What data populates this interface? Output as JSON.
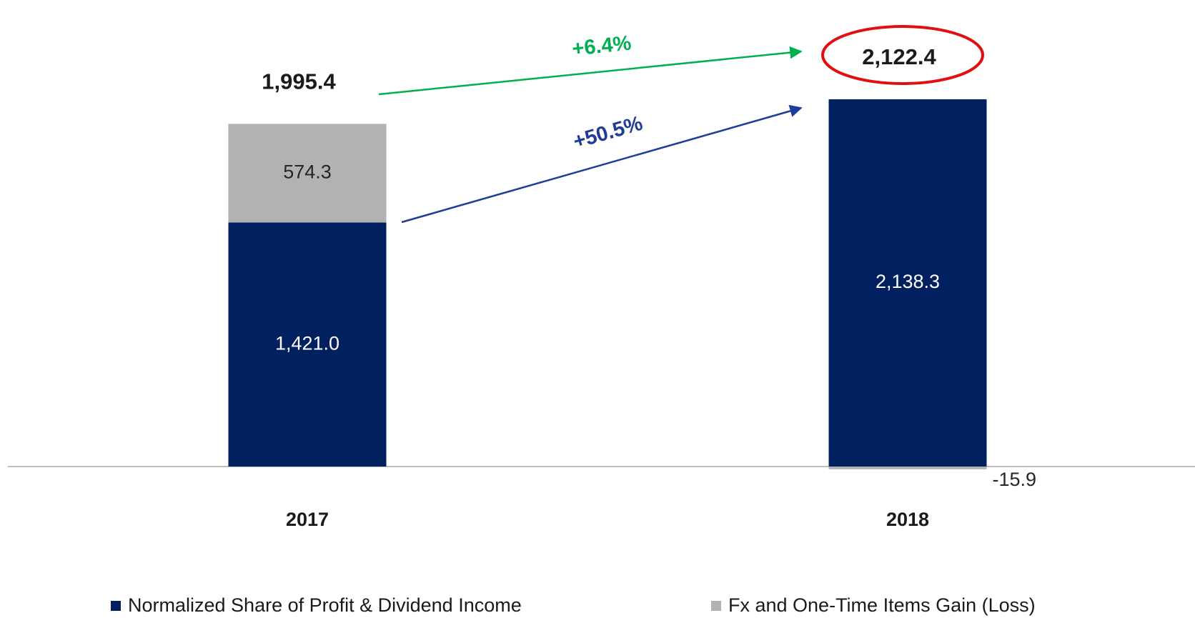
{
  "chart_data": {
    "type": "bar",
    "stacked": true,
    "categories": [
      "2017",
      "2018"
    ],
    "series": [
      {
        "name": "Normalized Share of Profit & Dividend Income",
        "color": "#002060",
        "values": [
          1421.0,
          2138.3
        ],
        "value_labels": [
          "1,421.0",
          "2,138.3"
        ]
      },
      {
        "name": "Fx and One-Time Items Gain (Loss)",
        "color": "#b2b2b2",
        "values": [
          574.3,
          -15.9
        ]
      }
    ],
    "totals": [
      1995.4,
      2122.4
    ],
    "total_labels": [
      "1,995.4",
      "2,122.4"
    ],
    "annotations": [
      "+6.4%",
      "+50.5%"
    ]
  }
}
